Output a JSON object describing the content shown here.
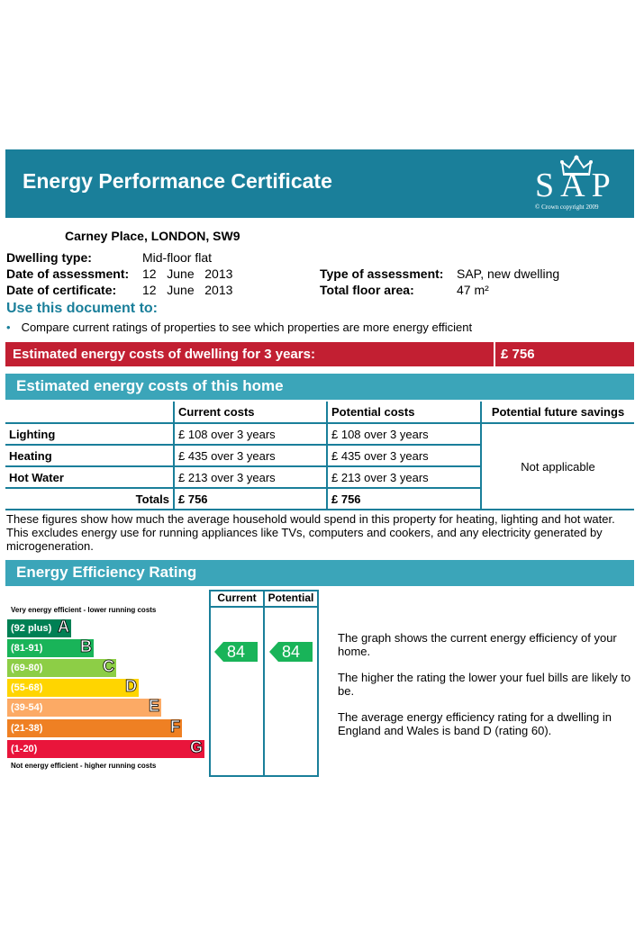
{
  "header": {
    "title": "Energy Performance Certificate",
    "logo_text": "SAP",
    "logo_copyright": "© Crown copyright 2009",
    "bg_color": "#1a7f9a"
  },
  "address": "Carney Place, LONDON, SW9",
  "details": {
    "dwelling_type_label": "Dwelling type:",
    "dwelling_type_value": "Mid-floor flat",
    "assessment_date_label": "Date of assessment:",
    "assessment_date_value": "12   June   2013",
    "certificate_date_label": "Date of certificate:",
    "certificate_date_value": "12   June   2013",
    "assessment_type_label": "Type of assessment:",
    "assessment_type_value": "SAP, new dwelling",
    "floor_area_label": "Total floor area:",
    "floor_area_value": "47 m²"
  },
  "use_document": {
    "heading": "Use this document to:",
    "bullet_icon": "bullet-dot",
    "bullet": "Compare current ratings of properties to see which properties are more energy efficient"
  },
  "estimated_3yr": {
    "label": "Estimated energy costs of dwelling for 3 years:",
    "value": "£ 756",
    "color": "#c21f32"
  },
  "home_costs": {
    "heading": "Estimated energy costs of this home",
    "columns": [
      "",
      "Current costs",
      "Potential costs",
      "Potential future savings"
    ],
    "rows": [
      {
        "label": "Lighting",
        "current": "£ 108 over 3 years",
        "potential": "£ 108 over 3 years"
      },
      {
        "label": "Heating",
        "current": "£ 435 over 3 years",
        "potential": "£ 435 over 3 years"
      },
      {
        "label": "Hot Water",
        "current": "£ 213 over 3 years",
        "potential": "£ 213 over 3 years"
      }
    ],
    "totals_label": "Totals",
    "totals_current": "£ 756",
    "totals_potential": "£ 756",
    "savings": "Not applicable"
  },
  "figures_note": "These figures show how much the average household would spend in this property for heating, lighting and hot water. This excludes energy use for running appliances like TVs, computers and cookers, and any electricity generated by microgeneration.",
  "rating": {
    "heading": "Energy Efficiency Rating",
    "top_label": "Very energy efficient - lower running costs",
    "bottom_label": "Not energy efficient - higher running costs",
    "col_current": "Current",
    "col_potential": "Potential",
    "current_value": "84",
    "potential_value": "84",
    "bands": [
      {
        "range": "(92 plus)",
        "letter": "A",
        "color": "#008054"
      },
      {
        "range": "(81-91)",
        "letter": "B",
        "color": "#19b459"
      },
      {
        "range": "(69-80)",
        "letter": "C",
        "color": "#8dce46"
      },
      {
        "range": "(55-68)",
        "letter": "D",
        "color": "#ffd500"
      },
      {
        "range": "(39-54)",
        "letter": "E",
        "color": "#fcaa65"
      },
      {
        "range": "(21-38)",
        "letter": "F",
        "color": "#ef8023"
      },
      {
        "range": "(1-20)",
        "letter": "G",
        "color": "#e9153b"
      }
    ],
    "notes": [
      "The graph shows the current energy efficiency of your home.",
      "The higher the rating the lower your fuel bills are likely to be.",
      "The average energy efficiency rating for a dwelling in England and Wales is band D (rating 60)."
    ]
  }
}
